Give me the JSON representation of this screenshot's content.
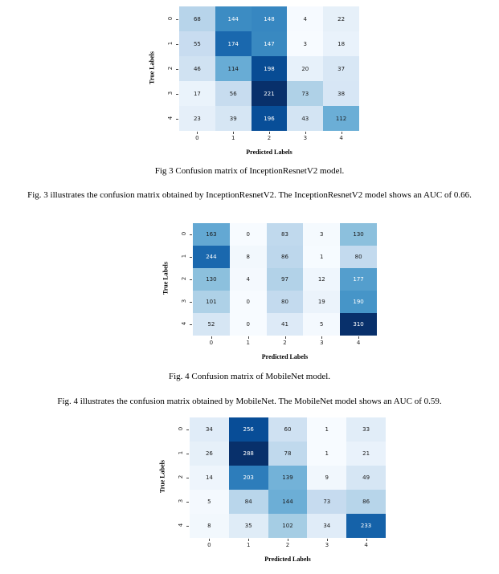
{
  "matrices": [
    {
      "id": "inceptionresnetv2",
      "row_labels": [
        "0",
        "1",
        "2",
        "3",
        "4"
      ],
      "col_labels": [
        "0",
        "1",
        "2",
        "3",
        "4"
      ],
      "values": [
        [
          68,
          144,
          148,
          4,
          22
        ],
        [
          55,
          174,
          147,
          3,
          18
        ],
        [
          46,
          114,
          198,
          20,
          37
        ],
        [
          17,
          56,
          221,
          73,
          38
        ],
        [
          23,
          39,
          196,
          43,
          112
        ]
      ],
      "ylabel": "True Labels",
      "xlabel": "Predicted Labels"
    },
    {
      "id": "mobilenet",
      "row_labels": [
        "0",
        "1",
        "2",
        "3",
        "4"
      ],
      "col_labels": [
        "0",
        "1",
        "2",
        "3",
        "4"
      ],
      "values": [
        [
          163,
          0,
          83,
          3,
          130
        ],
        [
          244,
          8,
          86,
          1,
          80
        ],
        [
          130,
          4,
          97,
          12,
          177
        ],
        [
          101,
          0,
          80,
          19,
          190
        ],
        [
          52,
          0,
          41,
          5,
          310
        ]
      ],
      "ylabel": "True Labels",
      "xlabel": "Predicted Labels"
    },
    {
      "id": "third",
      "row_labels": [
        "0",
        "1",
        "2",
        "3",
        "4"
      ],
      "col_labels": [
        "0",
        "1",
        "2",
        "3",
        "4"
      ],
      "values": [
        [
          34,
          256,
          60,
          1,
          33
        ],
        [
          26,
          288,
          78,
          1,
          21
        ],
        [
          14,
          203,
          139,
          9,
          49
        ],
        [
          5,
          84,
          144,
          73,
          86
        ],
        [
          8,
          35,
          102,
          34,
          233
        ]
      ],
      "ylabel": "True Labels",
      "xlabel": "Predicted Labels"
    }
  ],
  "text": {
    "fig3_caption": "Fig 3 Confusion matrix of InceptionResnetV2 model.",
    "fig3_paragraph": "Fig. 3 illustrates the confusion matrix obtained by InceptionResnetV2. The InceptionResnetV2 model shows an AUC of 0.66.",
    "fig4_caption": "Fig. 4 Confusion matrix of MobileNet model.",
    "fig4_paragraph": "Fig. 4 illustrates the confusion matrix obtained by MobileNet. The MobileNet model shows an AUC of 0.59."
  },
  "chart_data": [
    {
      "type": "heatmap",
      "title": "",
      "xlabel": "Predicted Labels",
      "ylabel": "True Labels",
      "x": [
        "0",
        "1",
        "2",
        "3",
        "4"
      ],
      "y": [
        "0",
        "1",
        "2",
        "3",
        "4"
      ],
      "values": [
        [
          68,
          144,
          148,
          4,
          22
        ],
        [
          55,
          174,
          147,
          3,
          18
        ],
        [
          46,
          114,
          198,
          20,
          37
        ],
        [
          17,
          56,
          221,
          73,
          38
        ],
        [
          23,
          39,
          196,
          43,
          112
        ]
      ],
      "colormap": "Blues"
    },
    {
      "type": "heatmap",
      "title": "",
      "xlabel": "Predicted Labels",
      "ylabel": "True Labels",
      "x": [
        "0",
        "1",
        "2",
        "3",
        "4"
      ],
      "y": [
        "0",
        "1",
        "2",
        "3",
        "4"
      ],
      "values": [
        [
          163,
          0,
          83,
          3,
          130
        ],
        [
          244,
          8,
          86,
          1,
          80
        ],
        [
          130,
          4,
          97,
          12,
          177
        ],
        [
          101,
          0,
          80,
          19,
          190
        ],
        [
          52,
          0,
          41,
          5,
          310
        ]
      ],
      "colormap": "Blues"
    },
    {
      "type": "heatmap",
      "title": "",
      "xlabel": "Predicted Labels",
      "ylabel": "True Labels",
      "x": [
        "0",
        "1",
        "2",
        "3",
        "4"
      ],
      "y": [
        "0",
        "1",
        "2",
        "3",
        "4"
      ],
      "values": [
        [
          34,
          256,
          60,
          1,
          33
        ],
        [
          26,
          288,
          78,
          1,
          21
        ],
        [
          14,
          203,
          139,
          9,
          49
        ],
        [
          5,
          84,
          144,
          73,
          86
        ],
        [
          8,
          35,
          102,
          34,
          233
        ]
      ],
      "colormap": "Blues"
    }
  ]
}
